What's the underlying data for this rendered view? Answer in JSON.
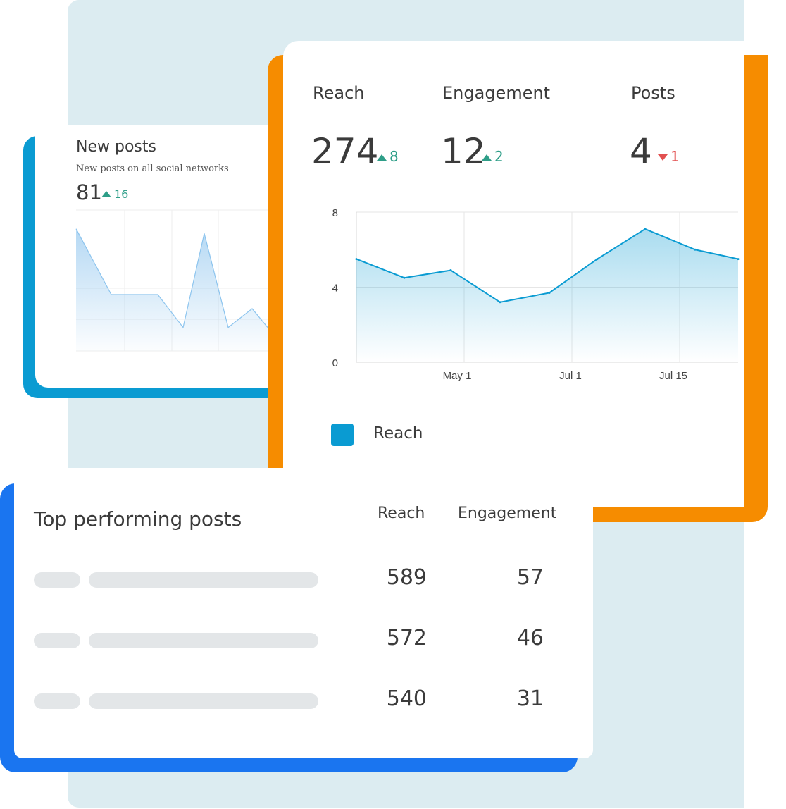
{
  "new_posts": {
    "title": "New posts",
    "subtitle": "New posts on all social networks",
    "value": "81",
    "delta": "16",
    "delta_direction": "up"
  },
  "metrics": [
    {
      "label": "Reach",
      "value": "274",
      "delta": "8",
      "direction": "up"
    },
    {
      "label": "Engagement",
      "value": "12",
      "delta": "2",
      "direction": "up"
    },
    {
      "label": "Posts",
      "value": "4",
      "delta": "1",
      "direction": "down"
    }
  ],
  "legend": {
    "label": "Reach",
    "color": "#0a9bd2"
  },
  "top_posts": {
    "title": "Top performing posts",
    "columns": [
      "Reach",
      "Engagement"
    ],
    "rows": [
      {
        "reach": "589",
        "engagement": "57"
      },
      {
        "reach": "572",
        "engagement": "46"
      },
      {
        "reach": "540",
        "engagement": "31"
      }
    ]
  },
  "colors": {
    "accent_blue": "#0a9bd2",
    "accent_orange": "#f68c00",
    "accent_royal": "#1a75f0",
    "positive": "#2e9e88",
    "negative": "#e25050",
    "background": "#dcecf1"
  },
  "chart_data": [
    {
      "type": "area",
      "title": "Reach",
      "xlabel": "",
      "ylabel": "",
      "ylim": [
        0,
        8
      ],
      "yticks": [
        "8",
        "4",
        "0"
      ],
      "xticks": [
        "May 1",
        "Jul 1",
        "Jul 15"
      ],
      "grid": true,
      "legend": "bottom-left",
      "series": [
        {
          "name": "Reach",
          "values": [
            5.5,
            4.5,
            4.9,
            3.2,
            3.7,
            5.5,
            7.1,
            6.0,
            5.5
          ]
        }
      ]
    },
    {
      "type": "area",
      "title": "New posts",
      "grid": true,
      "series": [
        {
          "values": [
            5.2,
            2.4,
            2.4,
            2.4,
            1.0,
            5.0,
            1.0,
            1.8,
            1.0
          ]
        }
      ]
    }
  ]
}
